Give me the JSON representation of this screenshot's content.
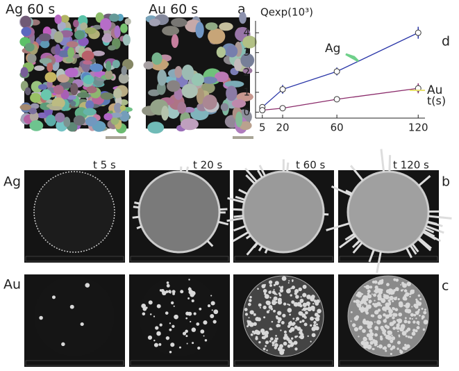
{
  "panels": {
    "a": {
      "letter": "a",
      "left": "Ag 60 s",
      "right": "Au 60 s"
    },
    "b": {
      "letter": "b",
      "row": "Ag",
      "times": [
        "t 5 s",
        "t 20 s",
        "t 60 s",
        "t 120 s"
      ]
    },
    "c": {
      "letter": "c",
      "row": "Au"
    },
    "d": {
      "letter": "d"
    }
  },
  "chart_data": {
    "type": "line",
    "title": "Qexp(10³)",
    "x_label": "t(s)",
    "xlim": [
      0,
      125
    ],
    "xticks": [
      5,
      20,
      60,
      120
    ],
    "ylim": [
      -0.3,
      4.6
    ],
    "yticks": [
      0,
      1,
      2,
      3,
      4
    ],
    "series": [
      {
        "name": "Ag",
        "color": "#2a36a8",
        "x": [
          5,
          20,
          60,
          120
        ],
        "values": [
          0.25,
          1.15,
          2.05,
          4.0
        ],
        "errors": [
          0.1,
          0.22,
          0.2,
          0.3
        ]
      },
      {
        "name": "Au",
        "color": "#8a2a6a",
        "x": [
          5,
          20,
          60,
          120
        ],
        "values": [
          0.1,
          0.2,
          0.65,
          1.2
        ],
        "errors": [
          0.05,
          0.05,
          0.12,
          0.25
        ]
      }
    ]
  }
}
